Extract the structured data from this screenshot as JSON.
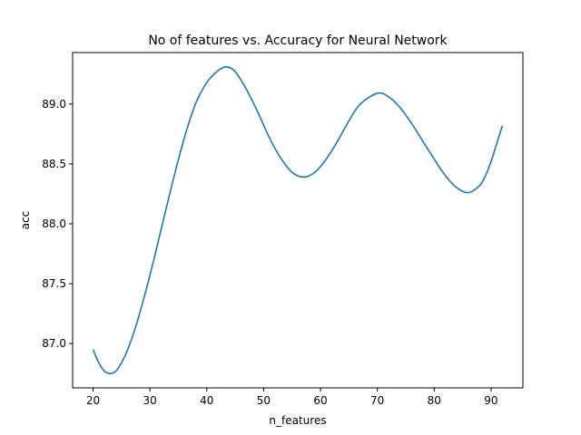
{
  "chart_data": {
    "type": "line",
    "title": "No of features vs. Accuracy for Neural Network",
    "xlabel": "n_features",
    "ylabel": "acc",
    "xlim": [
      16.4,
      95.6
    ],
    "ylim": [
      86.63,
      89.43
    ],
    "xticks": [
      20,
      30,
      40,
      50,
      60,
      70,
      80,
      90
    ],
    "yticks": [
      87.0,
      87.5,
      88.0,
      88.5,
      89.0
    ],
    "xtick_labels": [
      "20",
      "30",
      "40",
      "50",
      "60",
      "70",
      "80",
      "90"
    ],
    "ytick_labels": [
      "87.0",
      "87.5",
      "88.0",
      "88.5",
      "89.0"
    ],
    "grid": false,
    "series": [
      {
        "color": "#1f77b4",
        "x": [
          20,
          21,
          22,
          23,
          24,
          25,
          26,
          27,
          28,
          30,
          32,
          34,
          36,
          38,
          40,
          42,
          43.5,
          45,
          47,
          49,
          51,
          53,
          55,
          57,
          59,
          61,
          63,
          65,
          67,
          70,
          72,
          74,
          76,
          78,
          80,
          82,
          84,
          86,
          88,
          89,
          90,
          91,
          92
        ],
        "y": [
          86.95,
          86.84,
          86.77,
          86.75,
          86.77,
          86.84,
          86.94,
          87.07,
          87.22,
          87.57,
          87.96,
          88.35,
          88.71,
          89.0,
          89.18,
          89.28,
          89.31,
          89.27,
          89.12,
          88.93,
          88.72,
          88.55,
          88.43,
          88.39,
          88.43,
          88.54,
          88.69,
          88.86,
          89.0,
          89.09,
          89.06,
          88.97,
          88.84,
          88.69,
          88.54,
          88.4,
          88.3,
          88.26,
          88.32,
          88.4,
          88.52,
          88.67,
          88.82
        ]
      }
    ]
  }
}
